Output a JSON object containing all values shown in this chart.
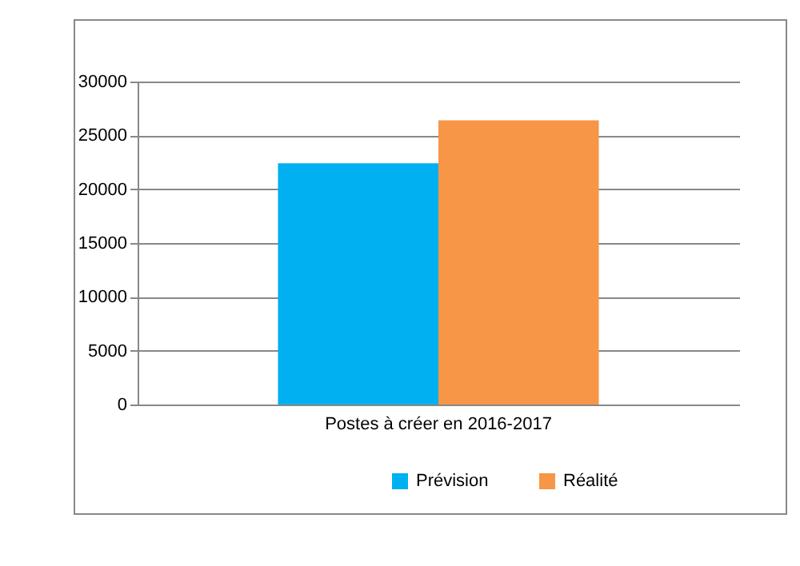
{
  "chart_data": {
    "type": "bar",
    "categories": [
      "Postes à créer en 2016-2017"
    ],
    "series": [
      {
        "name": "Prévision",
        "color": "#00b0f0",
        "values": [
          22400
        ]
      },
      {
        "name": "Réalité",
        "color": "#f79646",
        "values": [
          26400
        ]
      }
    ],
    "ylim": [
      0,
      30000
    ],
    "yticks": [
      0,
      5000,
      10000,
      15000,
      20000,
      25000,
      30000
    ],
    "grid": "y",
    "legend": "bottom"
  }
}
